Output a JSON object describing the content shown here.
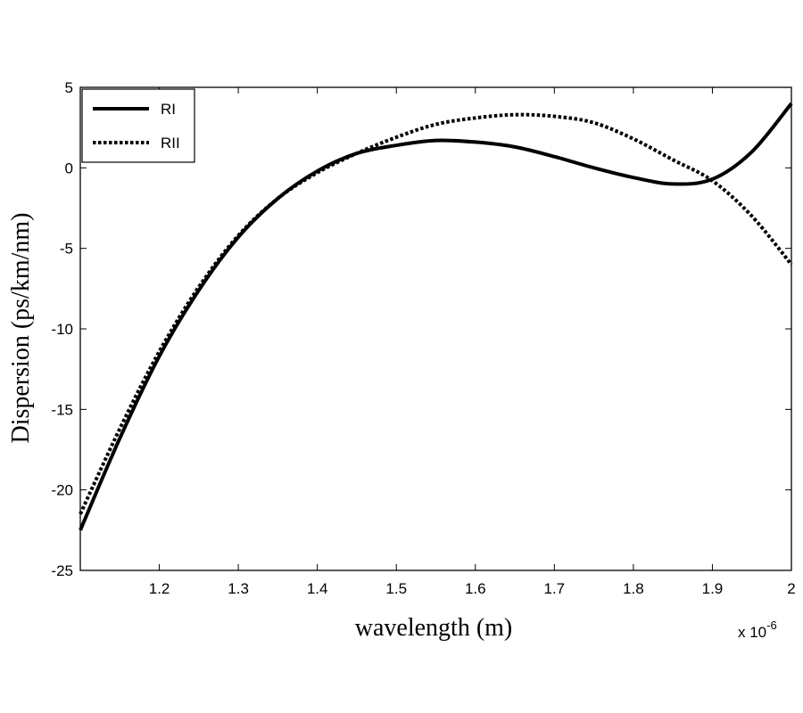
{
  "chart_data": {
    "type": "line",
    "xlabel": "wavelength (m)",
    "ylabel": "Dispersion (ps/km/nm)",
    "x_multiplier": "x 10",
    "x_multiplier_exp": "-6",
    "xlim": [
      1.1,
      2.0
    ],
    "ylim": [
      -25,
      5
    ],
    "x_ticks": [
      1.2,
      1.3,
      1.4,
      1.5,
      1.6,
      1.7,
      1.8,
      1.9,
      2
    ],
    "x_tick_labels": [
      "1.2",
      "1.3",
      "1.4",
      "1.5",
      "1.6",
      "1.7",
      "1.8",
      "1.9",
      "2"
    ],
    "y_ticks": [
      5,
      0,
      -5,
      -10,
      -15,
      -20,
      -25
    ],
    "y_tick_labels": [
      "5",
      "0",
      "-5",
      "-10",
      "-15",
      "-20",
      "-25"
    ],
    "grid": false,
    "legend_position": "top-left",
    "series": [
      {
        "name": "RI",
        "style": "solid",
        "color": "#000000",
        "x": [
          1.1,
          1.15,
          1.2,
          1.25,
          1.3,
          1.35,
          1.4,
          1.45,
          1.5,
          1.55,
          1.6,
          1.65,
          1.7,
          1.75,
          1.8,
          1.85,
          1.9,
          1.95,
          2.0
        ],
        "y": [
          -22.5,
          -16.8,
          -11.7,
          -7.6,
          -4.3,
          -1.9,
          -0.2,
          0.9,
          1.4,
          1.7,
          1.6,
          1.3,
          0.7,
          0.0,
          -0.6,
          -1.0,
          -0.7,
          1.0,
          4.0
        ]
      },
      {
        "name": "RII",
        "style": "dotted",
        "color": "#000000",
        "x": [
          1.1,
          1.15,
          1.2,
          1.25,
          1.3,
          1.35,
          1.4,
          1.45,
          1.5,
          1.55,
          1.6,
          1.65,
          1.7,
          1.75,
          1.8,
          1.85,
          1.9,
          1.95,
          2.0
        ],
        "y": [
          -21.5,
          -16.2,
          -11.4,
          -7.4,
          -4.2,
          -1.9,
          -0.3,
          0.9,
          1.9,
          2.7,
          3.1,
          3.3,
          3.2,
          2.8,
          1.8,
          0.5,
          -0.8,
          -3.0,
          -6.0
        ]
      }
    ]
  }
}
